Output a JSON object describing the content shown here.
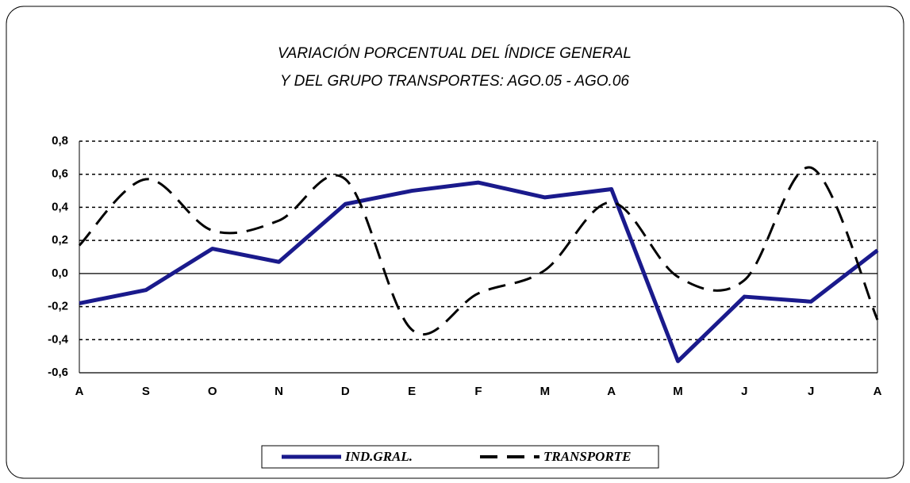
{
  "chart_data": {
    "type": "line",
    "title": [
      "VARIACIÓN PORCENTUAL DEL ÍNDICE GENERAL",
      "Y DEL GRUPO TRANSPORTES:  AGO.05 - AGO.06"
    ],
    "categories": [
      "A",
      "S",
      "O",
      "N",
      "D",
      "E",
      "F",
      "M",
      "A",
      "M",
      "J",
      "J",
      "A"
    ],
    "series": [
      {
        "name": "IND.GRAL.",
        "color": "#1a1a8c",
        "style": "solid",
        "smooth": false,
        "values": [
          -0.18,
          -0.1,
          0.15,
          0.07,
          0.42,
          0.5,
          0.55,
          0.46,
          0.51,
          -0.53,
          -0.14,
          -0.17,
          0.14
        ]
      },
      {
        "name": "TRANSPORTE",
        "color": "#000000",
        "style": "dashed",
        "smooth": true,
        "values": [
          0.17,
          0.57,
          0.26,
          0.32,
          0.57,
          -0.34,
          -0.12,
          0.02,
          0.43,
          -0.02,
          -0.04,
          0.64,
          -0.28
        ]
      }
    ],
    "ylim": [
      -0.6,
      0.8
    ],
    "yticks": [
      {
        "value": 0.8,
        "label": "0,8"
      },
      {
        "value": 0.6,
        "label": "0,6"
      },
      {
        "value": 0.4,
        "label": "0,4"
      },
      {
        "value": 0.2,
        "label": "0,2"
      },
      {
        "value": 0,
        "label": "0,0"
      },
      {
        "value": -0.2,
        "label": "-0,2"
      },
      {
        "value": -0.4,
        "label": "-0,4"
      },
      {
        "value": -0.6,
        "label": "-0,6"
      }
    ],
    "grid": true
  }
}
